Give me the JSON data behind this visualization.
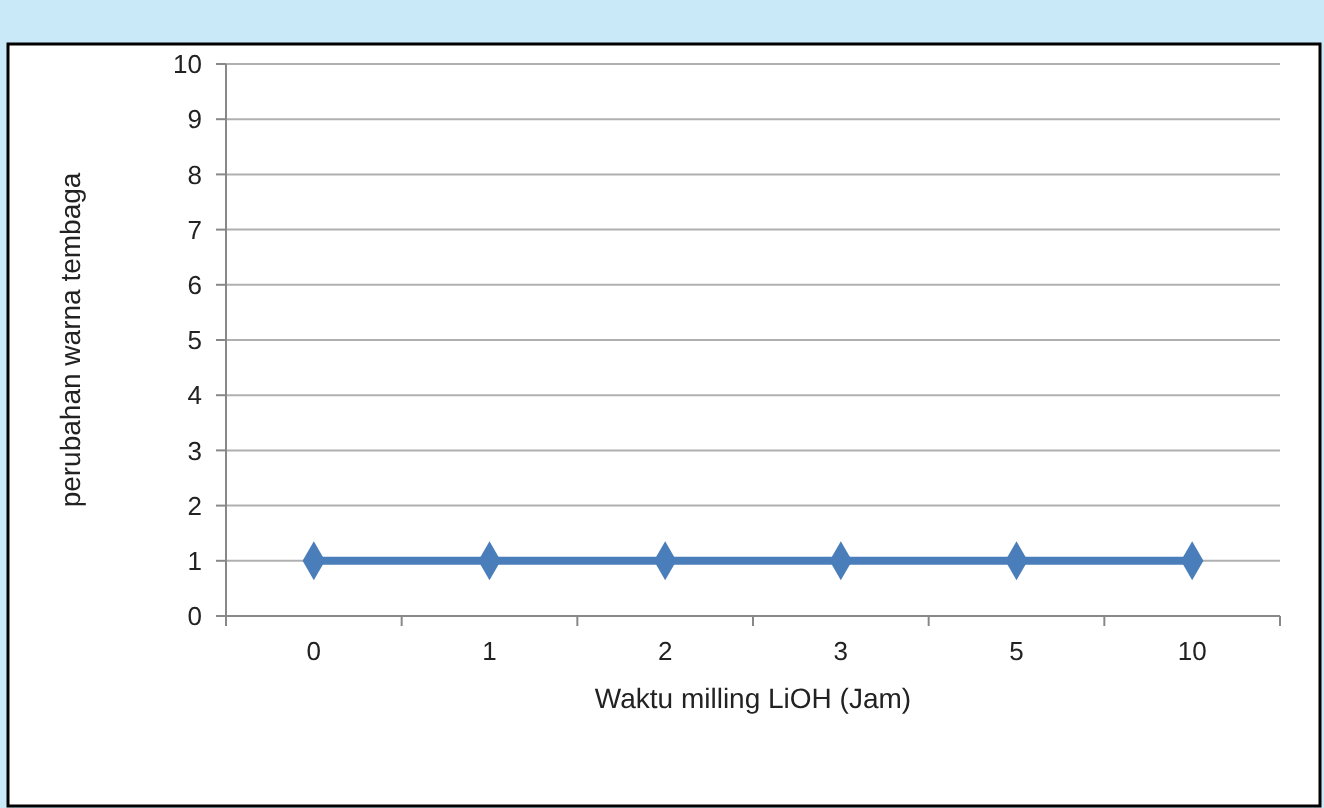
{
  "chart_data": {
    "type": "line",
    "xlabel": "Waktu milling LiOH (Jam)",
    "ylabel": "perubahan warna tembaga",
    "categories": [
      "0",
      "1",
      "2",
      "3",
      "5",
      "10"
    ],
    "series": [
      {
        "color": "#4a7ebb",
        "values": [
          1,
          1,
          1,
          1,
          1,
          1
        ]
      }
    ],
    "ylim": [
      0,
      10
    ],
    "yticks": [
      0,
      1,
      2,
      3,
      4,
      5,
      6,
      7,
      8,
      9,
      10
    ],
    "grid": "y",
    "marker": "diamond",
    "line_style": "solid"
  }
}
